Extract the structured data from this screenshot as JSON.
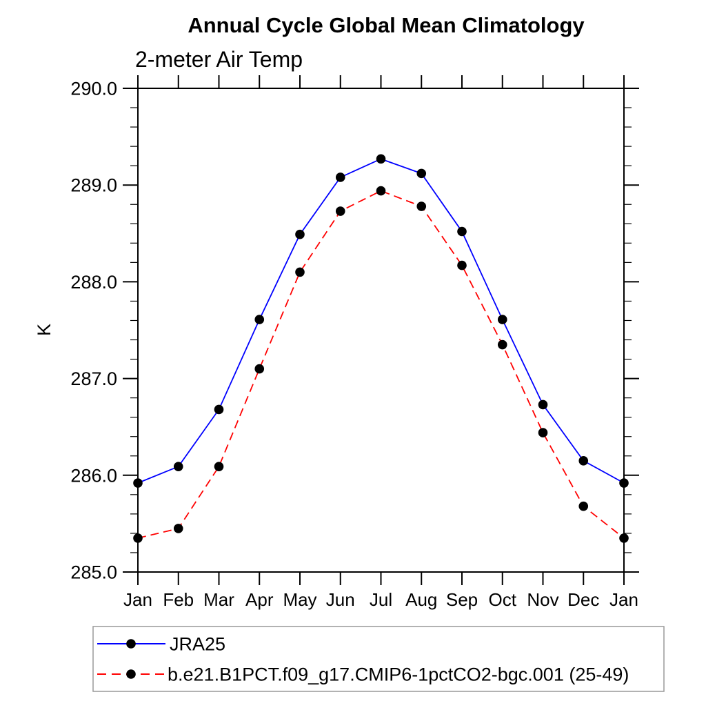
{
  "chart_data": {
    "type": "line",
    "title": "Annual Cycle Global Mean Climatology",
    "subtitle": "2-meter Air Temp",
    "ylabel": "K",
    "xlabel": "",
    "ylim": [
      285.0,
      290.0
    ],
    "ytick_major": [
      285.0,
      286.0,
      287.0,
      288.0,
      289.0,
      290.0
    ],
    "ytick_labels": [
      "285.0",
      "286.0",
      "287.0",
      "288.0",
      "289.0",
      "290.0"
    ],
    "ytick_minor_step": 0.2,
    "categories": [
      "Jan",
      "Feb",
      "Mar",
      "Apr",
      "May",
      "Jun",
      "Jul",
      "Aug",
      "Sep",
      "Oct",
      "Nov",
      "Dec",
      "Jan"
    ],
    "grid": false,
    "legend_position": "bottom-left",
    "axis_color": "#000000",
    "legend_border_color": "#999999",
    "marker_shape": "filled-circle",
    "series": [
      {
        "name": "JRA25",
        "color": "#0000ff",
        "style": "solid",
        "marker_color": "#000000",
        "values": [
          285.92,
          286.09,
          286.68,
          287.61,
          288.49,
          289.08,
          289.27,
          289.12,
          288.52,
          287.61,
          286.73,
          286.15,
          285.92
        ]
      },
      {
        "name": "b.e21.B1PCT.f09_g17.CMIP6-1pctCO2-bgc.001 (25-49)",
        "color": "#ff0000",
        "style": "dashed",
        "marker_color": "#000000",
        "values": [
          285.35,
          285.45,
          286.09,
          287.1,
          288.1,
          288.73,
          288.94,
          288.78,
          288.17,
          287.35,
          286.44,
          285.68,
          285.35
        ]
      }
    ]
  }
}
